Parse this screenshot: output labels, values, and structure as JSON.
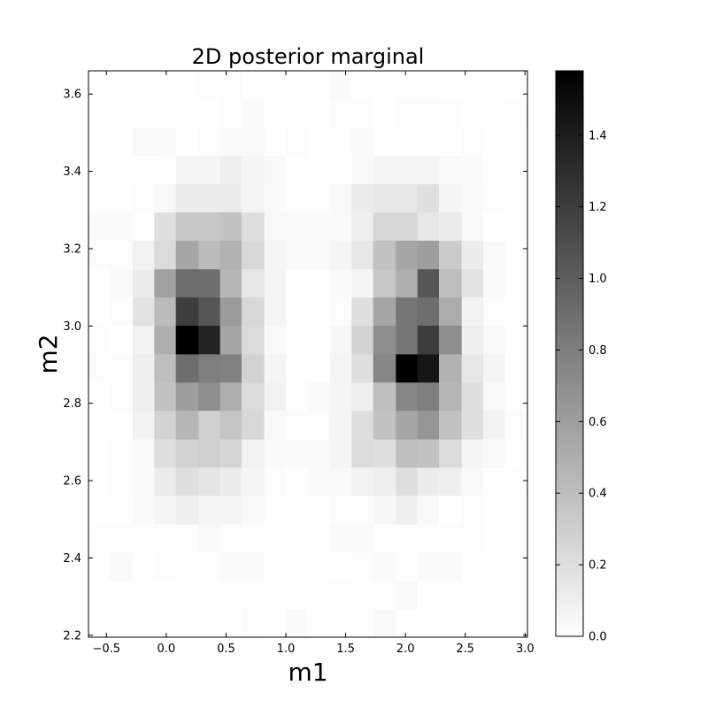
{
  "chart_data": {
    "type": "heatmap",
    "title": "2D posterior marginal",
    "xlabel": "m1",
    "ylabel": "m2",
    "xlim": [
      -0.65,
      3.02
    ],
    "ylim": [
      2.195,
      3.66
    ],
    "x_ticks": [
      {
        "value": -0.5,
        "label": "−0.5"
      },
      {
        "value": 0.0,
        "label": "0.0"
      },
      {
        "value": 0.5,
        "label": "0.5"
      },
      {
        "value": 1.0,
        "label": "1.0"
      },
      {
        "value": 1.5,
        "label": "1.5"
      },
      {
        "value": 2.0,
        "label": "2.0"
      },
      {
        "value": 2.5,
        "label": "2.5"
      },
      {
        "value": 3.0,
        "label": "3.0"
      }
    ],
    "y_ticks": [
      {
        "value": 2.2,
        "label": "2.2"
      },
      {
        "value": 2.4,
        "label": "2.4"
      },
      {
        "value": 2.6,
        "label": "2.6"
      },
      {
        "value": 2.8,
        "label": "2.8"
      },
      {
        "value": 3.0,
        "label": "3.0"
      },
      {
        "value": 3.2,
        "label": "3.2"
      },
      {
        "value": 3.4,
        "label": "3.4"
      },
      {
        "value": 3.6,
        "label": "3.6"
      }
    ],
    "x_edges": [
      -0.65,
      -0.47,
      -0.28,
      -0.1,
      0.08,
      0.27,
      0.45,
      0.63,
      0.82,
      1.0,
      1.18,
      1.37,
      1.55,
      1.73,
      1.92,
      2.1,
      2.28,
      2.47,
      2.65,
      2.83,
      3.02
    ],
    "y_edges": [
      2.195,
      2.268,
      2.342,
      2.415,
      2.488,
      2.562,
      2.635,
      2.708,
      2.782,
      2.855,
      2.928,
      3.002,
      3.075,
      3.148,
      3.222,
      3.295,
      3.368,
      3.442,
      3.515,
      3.588,
      3.66
    ],
    "z": [
      [
        0.0,
        0.0,
        0.0,
        0.0,
        0.0,
        0.0,
        0.0,
        0.02,
        0.0,
        0.03,
        0.0,
        0.0,
        0.0,
        0.04,
        0.0,
        0.0,
        0.0,
        0.0,
        0.0,
        0.0
      ],
      [
        0.0,
        0.0,
        0.0,
        0.0,
        0.01,
        0.01,
        0.01,
        0.02,
        0.0,
        0.0,
        0.0,
        0.01,
        0.01,
        0.02,
        0.04,
        0.0,
        0.0,
        0.0,
        0.0,
        0.0
      ],
      [
        0.0,
        0.04,
        0.0,
        0.01,
        0.02,
        0.01,
        0.03,
        0.03,
        0.0,
        0.0,
        0.0,
        0.0,
        0.02,
        0.03,
        0.0,
        0.03,
        0.03,
        0.0,
        0.0,
        0.0
      ],
      [
        0.01,
        0.01,
        0.01,
        0.02,
        0.02,
        0.04,
        0.02,
        0.01,
        0.0,
        0.0,
        0.0,
        0.03,
        0.04,
        0.01,
        0.02,
        0.02,
        0.02,
        0.01,
        0.0,
        0.0
      ],
      [
        0.0,
        0.0,
        0.03,
        0.06,
        0.1,
        0.06,
        0.06,
        0.04,
        0.0,
        0.0,
        0.0,
        0.02,
        0.02,
        0.05,
        0.1,
        0.04,
        0.0,
        0.02,
        0.0,
        0.0
      ],
      [
        0.0,
        0.01,
        0.03,
        0.12,
        0.2,
        0.16,
        0.12,
        0.06,
        0.02,
        0.0,
        0.03,
        0.03,
        0.08,
        0.1,
        0.2,
        0.12,
        0.1,
        0.04,
        0.0,
        0.01
      ],
      [
        0.0,
        0.01,
        0.03,
        0.2,
        0.28,
        0.3,
        0.26,
        0.08,
        0.03,
        0.03,
        0.03,
        0.06,
        0.22,
        0.2,
        0.4,
        0.38,
        0.22,
        0.06,
        0.04,
        0.0
      ],
      [
        0.0,
        0.0,
        0.08,
        0.28,
        0.45,
        0.3,
        0.36,
        0.24,
        0.03,
        0.02,
        0.02,
        0.06,
        0.2,
        0.38,
        0.55,
        0.65,
        0.38,
        0.2,
        0.08,
        0.02
      ],
      [
        0.0,
        0.02,
        0.1,
        0.38,
        0.6,
        0.7,
        0.5,
        0.22,
        0.08,
        0.0,
        0.03,
        0.06,
        0.1,
        0.4,
        0.75,
        0.8,
        0.45,
        0.2,
        0.04,
        0.0
      ],
      [
        0.02,
        0.02,
        0.1,
        0.4,
        0.9,
        0.8,
        0.78,
        0.28,
        0.06,
        0.0,
        0.0,
        0.06,
        0.2,
        0.75,
        1.6,
        1.45,
        0.48,
        0.15,
        0.06,
        0.0
      ],
      [
        0.01,
        0.0,
        0.08,
        0.5,
        1.58,
        1.35,
        0.55,
        0.22,
        0.04,
        0.0,
        0.0,
        0.05,
        0.28,
        0.7,
        0.85,
        1.2,
        0.7,
        0.1,
        0.04,
        0.0
      ],
      [
        0.0,
        0.02,
        0.18,
        0.42,
        1.2,
        1.05,
        0.62,
        0.24,
        0.06,
        0.0,
        0.0,
        0.02,
        0.2,
        0.55,
        0.85,
        0.9,
        0.52,
        0.08,
        0.02,
        0.0
      ],
      [
        0.0,
        0.04,
        0.12,
        0.58,
        0.9,
        0.9,
        0.45,
        0.15,
        0.06,
        0.0,
        0.0,
        0.03,
        0.06,
        0.35,
        0.5,
        1.05,
        0.4,
        0.18,
        0.04,
        0.0
      ],
      [
        0.02,
        0.02,
        0.08,
        0.22,
        0.55,
        0.42,
        0.48,
        0.24,
        0.06,
        0.03,
        0.03,
        0.06,
        0.15,
        0.38,
        0.55,
        0.6,
        0.32,
        0.12,
        0.04,
        0.0
      ],
      [
        0.03,
        0.03,
        0.0,
        0.2,
        0.35,
        0.35,
        0.38,
        0.2,
        0.04,
        0.04,
        0.03,
        0.03,
        0.1,
        0.25,
        0.25,
        0.15,
        0.12,
        0.04,
        0.0,
        0.0
      ],
      [
        0.0,
        0.0,
        0.02,
        0.04,
        0.12,
        0.12,
        0.12,
        0.06,
        0.03,
        0.02,
        0.02,
        0.04,
        0.12,
        0.15,
        0.15,
        0.2,
        0.06,
        0.04,
        0.02,
        0.0
      ],
      [
        0.0,
        0.0,
        0.0,
        0.0,
        0.06,
        0.06,
        0.1,
        0.06,
        0.04,
        0.0,
        0.0,
        0.0,
        0.03,
        0.06,
        0.06,
        0.06,
        0.04,
        0.03,
        0.0,
        0.0
      ],
      [
        0.0,
        0.0,
        0.04,
        0.03,
        0.0,
        0.02,
        0.04,
        0.04,
        0.0,
        0.02,
        0.0,
        0.0,
        0.04,
        0.0,
        0.0,
        0.0,
        0.0,
        0.02,
        0.0,
        0.0
      ],
      [
        0.0,
        0.0,
        0.0,
        0.0,
        0.0,
        0.0,
        0.01,
        0.03,
        0.0,
        0.0,
        0.0,
        0.02,
        0.01,
        0.0,
        0.02,
        0.02,
        0.01,
        0.0,
        0.0,
        0.01
      ],
      [
        0.0,
        0.0,
        0.0,
        0.0,
        0.0,
        0.01,
        0.02,
        0.0,
        0.0,
        0.0,
        0.0,
        0.03,
        0.0,
        0.0,
        0.0,
        0.0,
        0.0,
        0.0,
        0.0,
        0.0
      ]
    ],
    "colormap": "gray_r",
    "colorbar": {
      "vmin": 0.0,
      "vmax": 1.58,
      "ticks": [
        {
          "value": 0.0,
          "label": "0.0"
        },
        {
          "value": 0.2,
          "label": "0.2"
        },
        {
          "value": 0.4,
          "label": "0.4"
        },
        {
          "value": 0.6,
          "label": "0.6"
        },
        {
          "value": 0.8,
          "label": "0.8"
        },
        {
          "value": 1.0,
          "label": "1.0"
        },
        {
          "value": 1.2,
          "label": "1.2"
        },
        {
          "value": 1.4,
          "label": "1.4"
        }
      ]
    },
    "grid": false,
    "legend": "none"
  }
}
